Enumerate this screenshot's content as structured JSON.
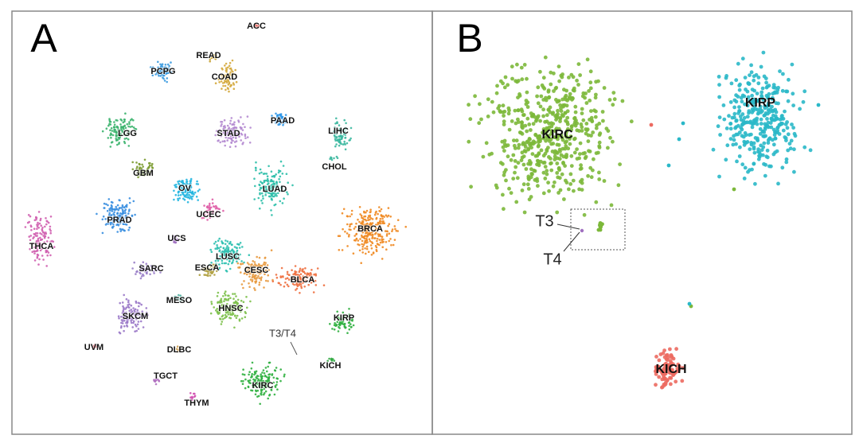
{
  "panels": [
    {
      "label": "A",
      "annotations": [
        "T3/T4"
      ],
      "clusters": [
        {
          "label": "ACC",
          "color": "#e0453c"
        },
        {
          "label": "READ",
          "color": "#c9a43a"
        },
        {
          "label": "COAD",
          "color": "#d4a93c"
        },
        {
          "label": "PCPG",
          "color": "#3c9be0"
        },
        {
          "label": "LGG",
          "color": "#3cb46e"
        },
        {
          "label": "STAD",
          "color": "#b48ad0"
        },
        {
          "label": "PAAD",
          "color": "#2f97e8"
        },
        {
          "label": "LIHC",
          "color": "#3cb8a0"
        },
        {
          "label": "CHOL",
          "color": "#3cb8a0"
        },
        {
          "label": "GBM",
          "color": "#7a9a2e"
        },
        {
          "label": "OV",
          "color": "#25b6e0"
        },
        {
          "label": "LUAD",
          "color": "#2ebfaa"
        },
        {
          "label": "BRCA",
          "color": "#ef8a22"
        },
        {
          "label": "PRAD",
          "color": "#3a8fe0"
        },
        {
          "label": "UCEC",
          "color": "#e060a8"
        },
        {
          "label": "THCA",
          "color": "#d060b0"
        },
        {
          "label": "UCS",
          "color": "#a070c0"
        },
        {
          "label": "LUSC",
          "color": "#2ec0b0"
        },
        {
          "label": "ESCA",
          "color": "#b0a040"
        },
        {
          "label": "CESC",
          "color": "#e89a40"
        },
        {
          "label": "SARC",
          "color": "#9a80c8"
        },
        {
          "label": "BLCA",
          "color": "#ee7040"
        },
        {
          "label": "MESO",
          "color": "#50b0a0"
        },
        {
          "label": "HNSC",
          "color": "#7cc04a"
        },
        {
          "label": "SKCM",
          "color": "#9a78c8"
        },
        {
          "label": "KIRP",
          "color": "#30b040"
        },
        {
          "label": "UVM",
          "color": "#e04050"
        },
        {
          "label": "DLBC",
          "color": "#d0a050"
        },
        {
          "label": "KICH",
          "color": "#30a840"
        },
        {
          "label": "KIRC",
          "color": "#30b040"
        },
        {
          "label": "TGCT",
          "color": "#b070c0"
        },
        {
          "label": "THYM",
          "color": "#d050b0"
        }
      ]
    },
    {
      "label": "B",
      "annotations": [
        "T3",
        "T4"
      ],
      "clusters": [
        {
          "label": "KIRC",
          "color": "#7cb83a"
        },
        {
          "label": "KIRP",
          "color": "#2ab8c8"
        },
        {
          "label": "KICH",
          "color": "#ec6a60"
        }
      ]
    }
  ]
}
